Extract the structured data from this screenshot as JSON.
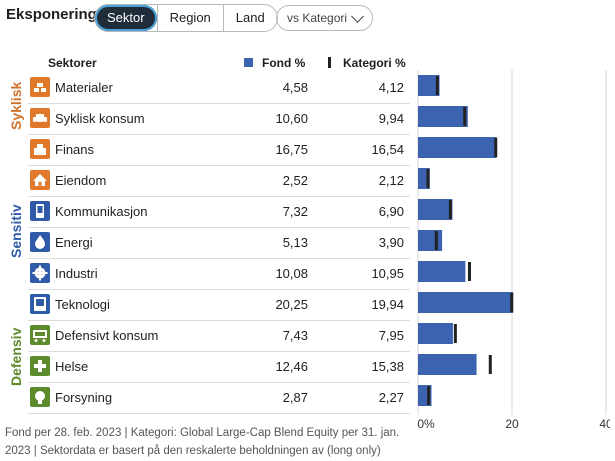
{
  "header": {
    "title": "Eksponering",
    "tabs": [
      {
        "label": "Sektor",
        "active": true
      },
      {
        "label": "Region",
        "active": false
      },
      {
        "label": "Land",
        "active": false
      }
    ],
    "dropdown_label": "vs Kategori"
  },
  "columns": {
    "sector": "Sektorer",
    "fund": "Fond  %",
    "category": "Kategori  %"
  },
  "groups": {
    "cyclical": "Syklisk",
    "sensitive": "Sensitiv",
    "defensive": "Defensiv"
  },
  "colors": {
    "fund_bar": "#3b63b0",
    "category_marker": "#222222",
    "cyclical": "#d2712a",
    "sensitive": "#2e5aa8",
    "defensive": "#5c8a2c"
  },
  "rows": [
    {
      "name": "Materialer",
      "fund": "4,58",
      "category": "4,12",
      "icon": "materials-icon"
    },
    {
      "name": "Syklisk konsum",
      "fund": "10,60",
      "category": "9,94",
      "icon": "car-icon"
    },
    {
      "name": "Finans",
      "fund": "16,75",
      "category": "16,54",
      "icon": "finance-icon"
    },
    {
      "name": "Eiendom",
      "fund": "2,52",
      "category": "2,12",
      "icon": "house-icon"
    },
    {
      "name": "Kommunikasjon",
      "fund": "7,32",
      "category": "6,90",
      "icon": "phone-icon"
    },
    {
      "name": "Energi",
      "fund": "5,13",
      "category": "3,90",
      "icon": "flame-icon"
    },
    {
      "name": "Industri",
      "fund": "10,08",
      "category": "10,95",
      "icon": "gear-icon"
    },
    {
      "name": "Teknologi",
      "fund": "20,25",
      "category": "19,94",
      "icon": "computer-icon"
    },
    {
      "name": "Defensivt konsum",
      "fund": "7,43",
      "category": "7,95",
      "icon": "cart-icon"
    },
    {
      "name": "Helse",
      "fund": "12,46",
      "category": "15,38",
      "icon": "health-cross-icon"
    },
    {
      "name": "Forsyning",
      "fund": "2,87",
      "category": "2,27",
      "icon": "bulb-icon"
    }
  ],
  "chart_data": {
    "type": "bar",
    "categories": [
      "Materialer",
      "Syklisk konsum",
      "Finans",
      "Eiendom",
      "Kommunikasjon",
      "Energi",
      "Industri",
      "Teknologi",
      "Defensivt konsum",
      "Helse",
      "Forsyning"
    ],
    "series": [
      {
        "name": "Fond  %",
        "values": [
          4.58,
          10.6,
          16.75,
          2.52,
          7.32,
          5.13,
          10.08,
          20.25,
          7.43,
          12.46,
          2.87
        ]
      },
      {
        "name": "Kategori  %",
        "values": [
          4.12,
          9.94,
          16.54,
          2.12,
          6.9,
          3.9,
          10.95,
          19.94,
          7.95,
          15.38,
          2.27
        ]
      }
    ],
    "xlim": [
      0,
      40
    ],
    "ticks": [
      "0%",
      "20",
      "40"
    ],
    "grid": true,
    "orientation": "horizontal"
  },
  "footnote": "Fond per 28. feb. 2023 | Kategori: Global Large-Cap Blend Equity per 31. jan. 2023 | Sektordata er basert på den reskalerte beholdningen av (long only)"
}
